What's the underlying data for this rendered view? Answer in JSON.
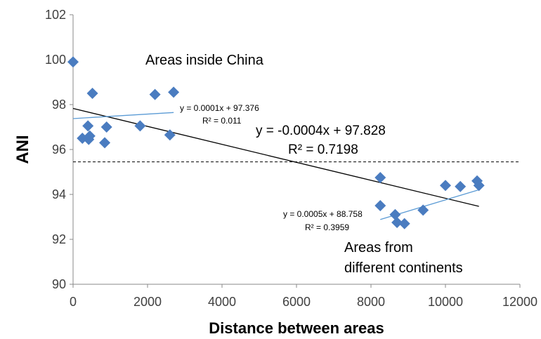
{
  "chart_data": {
    "type": "scatter",
    "xlabel": "Distance between areas",
    "ylabel": "ANI",
    "xlim": [
      0,
      12000
    ],
    "ylim": [
      90,
      102
    ],
    "x_ticks": [
      "0",
      "2000",
      "4000",
      "6000",
      "8000",
      "10000",
      "12000"
    ],
    "y_ticks": [
      "90",
      "92",
      "94",
      "96",
      "98",
      "100",
      "102"
    ],
    "x_tick_values": [
      0,
      2000,
      4000,
      6000,
      8000,
      10000,
      12000
    ],
    "y_tick_values": [
      90,
      92,
      94,
      96,
      98,
      100,
      102
    ],
    "grid": false,
    "marker_color": "#4a7cc0",
    "points": [
      {
        "x": 0,
        "y": 99.9
      },
      {
        "x": 250,
        "y": 96.5
      },
      {
        "x": 400,
        "y": 97.05
      },
      {
        "x": 420,
        "y": 96.45
      },
      {
        "x": 450,
        "y": 96.6
      },
      {
        "x": 520,
        "y": 98.5
      },
      {
        "x": 850,
        "y": 96.3
      },
      {
        "x": 900,
        "y": 97.0
      },
      {
        "x": 1800,
        "y": 97.05
      },
      {
        "x": 2200,
        "y": 98.45
      },
      {
        "x": 2600,
        "y": 96.65
      },
      {
        "x": 2700,
        "y": 98.55
      },
      {
        "x": 8250,
        "y": 94.75
      },
      {
        "x": 8250,
        "y": 93.5
      },
      {
        "x": 8650,
        "y": 93.1
      },
      {
        "x": 8700,
        "y": 92.75
      },
      {
        "x": 8900,
        "y": 92.7
      },
      {
        "x": 9400,
        "y": 93.3
      },
      {
        "x": 10000,
        "y": 94.4
      },
      {
        "x": 10400,
        "y": 94.35
      },
      {
        "x": 10850,
        "y": 94.6
      },
      {
        "x": 10900,
        "y": 94.4
      }
    ],
    "threshold_line": {
      "y": 95.45,
      "style": "dashed",
      "color": "#000000"
    },
    "trendlines": [
      {
        "slope": -0.0004,
        "intercept": 97.828,
        "x_range": [
          0,
          10900
        ],
        "color": "#000000",
        "equation": "y = -0.0004x + 97.828",
        "r2": "R² = 0.7198"
      },
      {
        "slope": 0.0001,
        "intercept": 97.376,
        "x_range": [
          0,
          2700
        ],
        "color": "#5b9bd5",
        "equation": "y = 0.0001x  + 97.376",
        "r2": "R² = 0.011"
      },
      {
        "slope": 0.0005,
        "intercept": 88.758,
        "x_range": [
          8250,
          10900
        ],
        "color": "#5b9bd5",
        "equation": "y = 0.0005x  + 88.758",
        "r2": "R² = 0.3959"
      }
    ],
    "annotations": [
      "Areas inside China",
      "Areas from",
      "different continents"
    ]
  }
}
